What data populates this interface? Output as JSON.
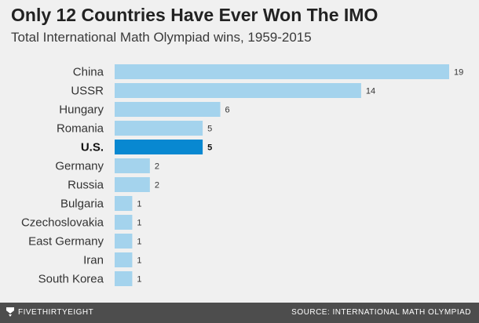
{
  "header": {
    "title": "Only 12 Countries Have Ever Won The IMO",
    "subtitle": "Total International Math Olympiad wins, 1959-2015"
  },
  "footer": {
    "brand": "FIVETHIRTYEIGHT",
    "source": "SOURCE: INTERNATIONAL MATH OLYMPIAD"
  },
  "colors": {
    "bar": "#a4d3ed",
    "highlight": "#0888d1",
    "background": "#f0f0f0",
    "footer": "#4d4d4d"
  },
  "chart_data": {
    "type": "bar",
    "orientation": "horizontal",
    "categories": [
      "China",
      "USSR",
      "Hungary",
      "Romania",
      "U.S.",
      "Germany",
      "Russia",
      "Bulgaria",
      "Czechoslovakia",
      "East Germany",
      "Iran",
      "South Korea"
    ],
    "values": [
      19,
      14,
      6,
      5,
      5,
      2,
      2,
      1,
      1,
      1,
      1,
      1
    ],
    "highlight": "U.S.",
    "xlim": [
      0,
      19
    ],
    "grid": false,
    "data_labels": true
  }
}
